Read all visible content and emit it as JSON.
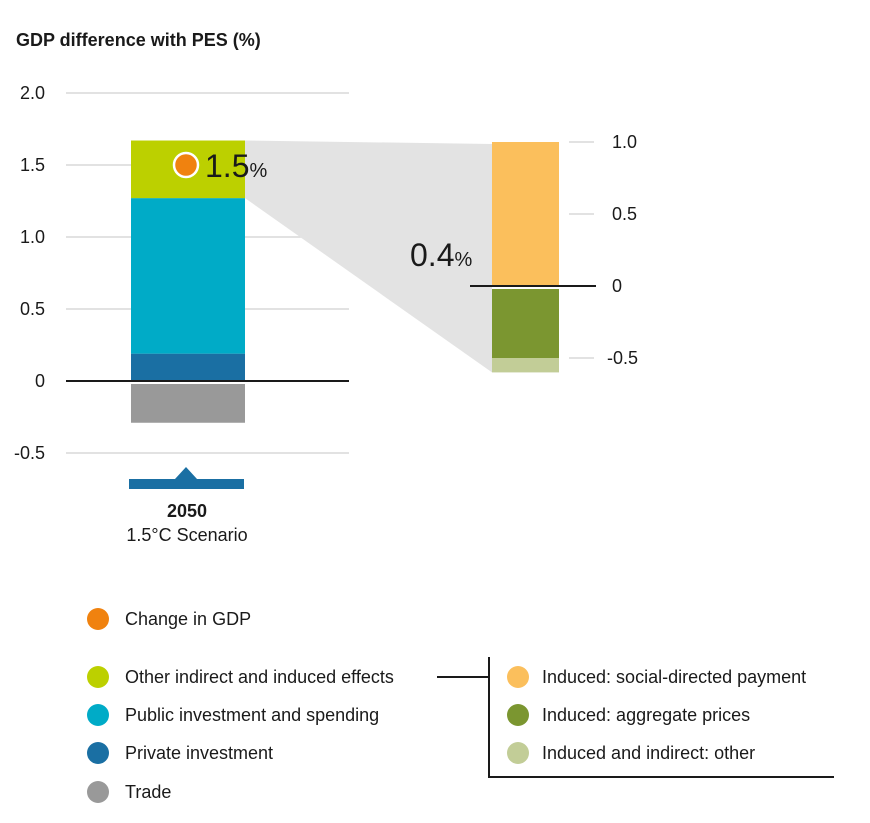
{
  "chart_data": [
    {
      "type": "bar",
      "stacked": true,
      "title": "GDP difference with PES (%)",
      "categories": [
        "2050"
      ],
      "category_subtitle": "1.5°C Scenario",
      "ylim": [
        -0.5,
        2.0
      ],
      "yticks": [
        "2.0",
        "1.5",
        "1.0",
        "0.5",
        "0",
        "-0.5"
      ],
      "grid": true,
      "series": [
        {
          "name": "Trade",
          "values": [
            -0.29
          ],
          "color": "#999999"
        },
        {
          "name": "Private investment",
          "values": [
            0.19
          ],
          "color": "#1a6fa3"
        },
        {
          "name": "Public investment and spending",
          "values": [
            1.08
          ],
          "color": "#00abc7"
        },
        {
          "name": "Other indirect and induced effects",
          "values": [
            0.4
          ],
          "color": "#bcd000"
        }
      ],
      "markers": [
        {
          "name": "Change in GDP",
          "value": 1.5,
          "label": "1.5",
          "unit": "%",
          "color": "#f0820f"
        }
      ]
    },
    {
      "type": "bar",
      "stacked": true,
      "title": "",
      "total_label": "0.4",
      "total_unit": "%",
      "ylim": [
        -0.6,
        1.0
      ],
      "yticks": [
        "1.0",
        "0.5",
        "0",
        "-0.5"
      ],
      "series": [
        {
          "name": "Induced: social-directed payment",
          "values": [
            1.0
          ],
          "color": "#fbbf5c"
        },
        {
          "name": "Induced: aggregate prices",
          "values": [
            -0.5
          ],
          "color": "#7b9630"
        },
        {
          "name": "Induced and indirect: other",
          "values": [
            -0.1
          ],
          "color": "#c2cd97"
        }
      ]
    }
  ],
  "legend": {
    "left": [
      {
        "label": "Change in GDP",
        "color": "#f0820f"
      },
      {
        "label": "Other indirect and induced effects",
        "color": "#bcd000"
      },
      {
        "label": "Public investment and spending",
        "color": "#00abc7"
      },
      {
        "label": "Private investment",
        "color": "#1a6fa3"
      },
      {
        "label": "Trade",
        "color": "#999999"
      }
    ],
    "right": [
      {
        "label": "Induced: social-directed payment",
        "color": "#fbbf5c"
      },
      {
        "label": "Induced: aggregate prices",
        "color": "#7b9630"
      },
      {
        "label": "Induced and indirect: other",
        "color": "#c2cd97"
      }
    ]
  },
  "colors": {
    "gridline": "#d9d9d9",
    "zero_line": "#1a1a1a",
    "connector": "#e3e3e3",
    "year_marker": "#1a6fa3"
  }
}
